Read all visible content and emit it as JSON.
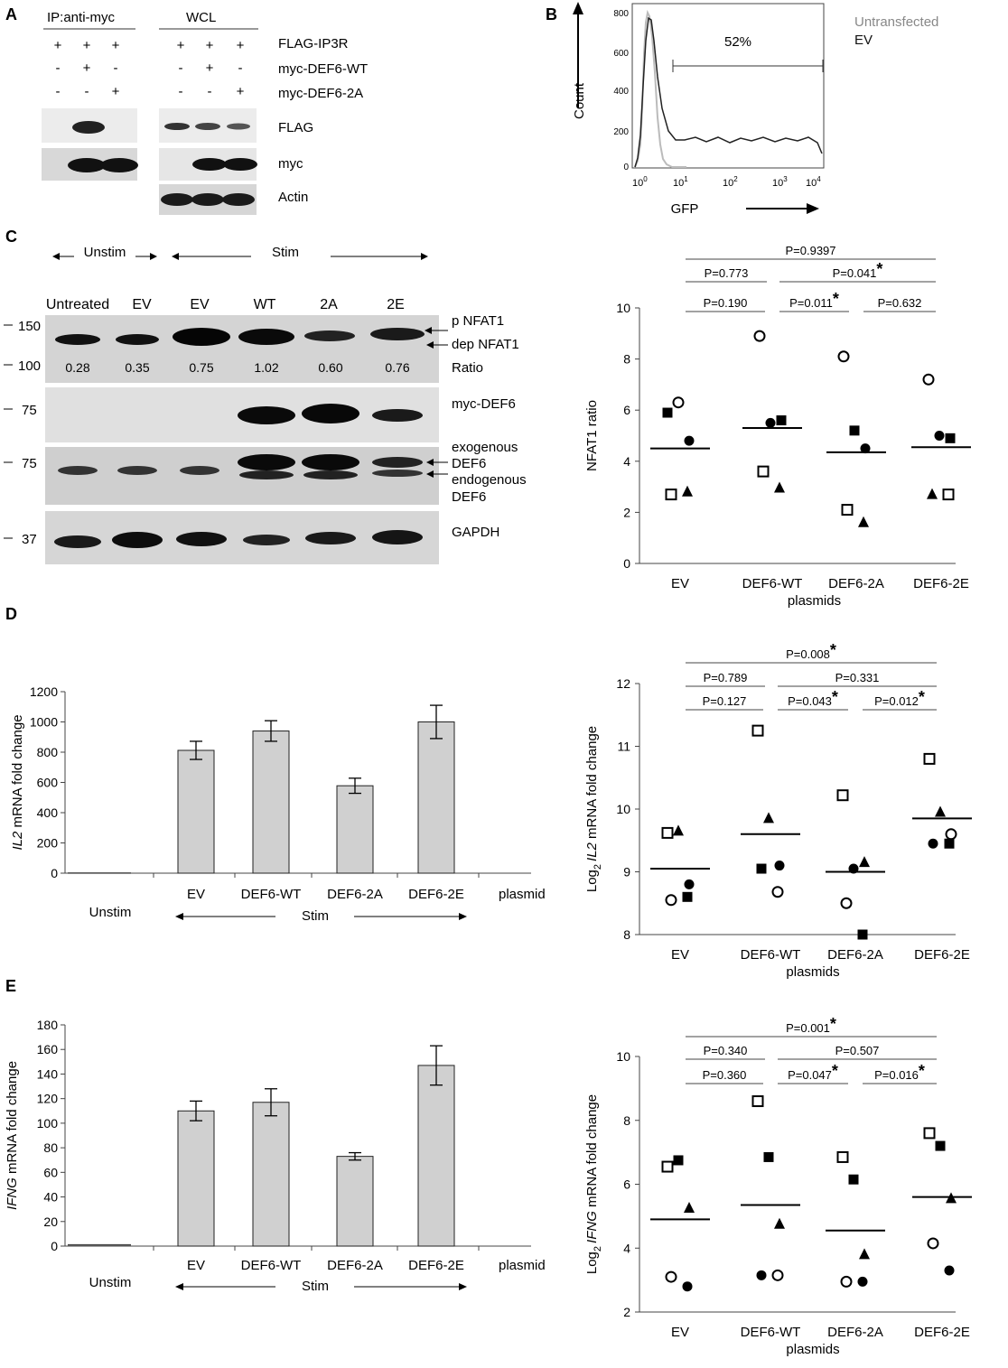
{
  "panel_letters": [
    "A",
    "B",
    "C",
    "D",
    "E"
  ],
  "panelA": {
    "group_ip": "IP:anti-myc",
    "group_wcl": "WCL",
    "row_labels": [
      "FLAG-IP3R",
      "myc-DEF6-WT",
      "myc-DEF6-2A"
    ],
    "signs_ip": [
      [
        "+",
        "+",
        "+"
      ],
      [
        "-",
        "+",
        "-"
      ],
      [
        "-",
        "-",
        "+"
      ]
    ],
    "signs_wcl": [
      [
        "+",
        "+",
        "+"
      ],
      [
        "-",
        "+",
        "-"
      ],
      [
        "-",
        "-",
        "+"
      ]
    ],
    "blot_labels": [
      "FLAG",
      "myc",
      "Actin"
    ]
  },
  "panelB": {
    "ylabel": "Count",
    "xlabel": "GFP",
    "legend": [
      "Untransfected",
      "EV"
    ],
    "gate_label": "52%",
    "yticks": [
      "0",
      "200",
      "400",
      "600",
      "800"
    ],
    "xticks": [
      {
        "base": "10",
        "exp": "0"
      },
      {
        "base": "10",
        "exp": "1"
      },
      {
        "base": "10",
        "exp": "2"
      },
      {
        "base": "10",
        "exp": "3"
      },
      {
        "base": "10",
        "exp": "4"
      }
    ]
  },
  "panelC_blot": {
    "unstim_label": "Unstim",
    "stim_label": "Stim",
    "lanes": [
      "Untreated",
      "EV",
      "EV",
      "WT",
      "2A",
      "2E"
    ],
    "ratios": [
      "0.28",
      "0.35",
      "0.75",
      "1.02",
      "0.60",
      "0.76"
    ],
    "mw_markers": [
      "150",
      "100",
      "75",
      "75",
      "37"
    ],
    "right_labels": {
      "p": "p NFAT1",
      "dep": "dep NFAT1",
      "ratio": "Ratio",
      "myc": "myc-DEF6",
      "exo1": "exogenous",
      "exo2": "DEF6",
      "endo1": "endogenous",
      "endo2": "DEF6",
      "gapdh": "GAPDH"
    }
  },
  "chart_data": [
    {
      "type": "scatter",
      "categories": [
        "EV",
        "DEF6-WT",
        "DEF6-2A",
        "DEF6-2E"
      ],
      "xlabel": "plasmids",
      "ylabel": "NFAT1 ratio",
      "ylim": [
        0,
        10
      ],
      "yticks": [
        0,
        2,
        4,
        6,
        8,
        10
      ],
      "means": [
        4.5,
        5.3,
        4.35,
        4.55
      ],
      "points": [
        [
          {
            "m": "fsq",
            "y": 5.9
          },
          {
            "m": "oc",
            "y": 6.3
          },
          {
            "m": "fc",
            "y": 4.8
          },
          {
            "m": "os",
            "y": 2.7
          },
          {
            "m": "tri",
            "y": 2.8
          }
        ],
        [
          {
            "m": "oc",
            "y": 8.9
          },
          {
            "m": "fc",
            "y": 5.5
          },
          {
            "m": "fsq",
            "y": 5.6
          },
          {
            "m": "os",
            "y": 3.6
          },
          {
            "m": "tri",
            "y": 2.95
          }
        ],
        [
          {
            "m": "oc",
            "y": 8.1
          },
          {
            "m": "fsq",
            "y": 5.2
          },
          {
            "m": "fc",
            "y": 4.5
          },
          {
            "m": "os",
            "y": 2.1
          },
          {
            "m": "tri",
            "y": 1.6
          }
        ],
        [
          {
            "m": "oc",
            "y": 7.2
          },
          {
            "m": "fc",
            "y": 5.0
          },
          {
            "m": "fsq",
            "y": 4.9
          },
          {
            "m": "tri",
            "y": 2.7
          },
          {
            "m": "os",
            "y": 2.7
          }
        ]
      ],
      "comparisons": [
        {
          "from": 0,
          "to": 3,
          "label": "P=0.9397",
          "star": ""
        },
        {
          "from": 0,
          "to": 1,
          "label": "P=0.773",
          "star": ""
        },
        {
          "from": 1,
          "to": 3,
          "label": "P=0.041",
          "star": "*"
        },
        {
          "from": 0,
          "to": 1,
          "label": "P=0.190",
          "star": ""
        },
        {
          "from": 1,
          "to": 2,
          "label": "P=0.011",
          "star": "*"
        },
        {
          "from": 2,
          "to": 3,
          "label": "P=0.632",
          "star": ""
        }
      ]
    },
    {
      "type": "bar",
      "categories": [
        "Unstim",
        "EV",
        "DEF6-WT",
        "DEF6-2A",
        "DEF6-2E"
      ],
      "values": [
        1,
        812,
        940,
        578,
        1000
      ],
      "errors": [
        0,
        60,
        68,
        50,
        110
      ],
      "ylabel_italic": "IL2",
      "ylabel_rest": " mRNA fold change",
      "ylim": [
        0,
        1200
      ],
      "yticks": [
        0,
        200,
        400,
        600,
        800,
        1000,
        1200
      ],
      "xaxis_tail": "plasmid",
      "stim_label": "Stim"
    },
    {
      "type": "scatter",
      "categories": [
        "EV",
        "DEF6-WT",
        "DEF6-2A",
        "DEF6-2E"
      ],
      "xlabel": "plasmids",
      "ylabel_pre": "Log",
      "ylabel_sub": "2",
      "ylabel_italic": "IL2",
      "ylabel_rest": " mRNA fold change",
      "ylim": [
        8,
        12
      ],
      "yticks": [
        8,
        9,
        10,
        11,
        12
      ],
      "means": [
        9.05,
        9.6,
        9.0,
        9.85
      ],
      "points": [
        [
          {
            "m": "os",
            "y": 9.62
          },
          {
            "m": "tri",
            "y": 9.65
          },
          {
            "m": "fc",
            "y": 8.8
          },
          {
            "m": "oc",
            "y": 8.55
          },
          {
            "m": "fsq",
            "y": 8.6
          }
        ],
        [
          {
            "m": "os",
            "y": 11.25
          },
          {
            "m": "tri",
            "y": 9.85
          },
          {
            "m": "fc",
            "y": 9.1
          },
          {
            "m": "fsq",
            "y": 9.05
          },
          {
            "m": "oc",
            "y": 8.68
          }
        ],
        [
          {
            "m": "os",
            "y": 10.22
          },
          {
            "m": "fc",
            "y": 9.05
          },
          {
            "m": "tri",
            "y": 9.15
          },
          {
            "m": "oc",
            "y": 8.5
          },
          {
            "m": "fsq",
            "y": 8.0
          }
        ],
        [
          {
            "m": "os",
            "y": 10.8
          },
          {
            "m": "tri",
            "y": 9.95
          },
          {
            "m": "oc",
            "y": 9.6
          },
          {
            "m": "fc",
            "y": 9.45
          },
          {
            "m": "fsq",
            "y": 9.45
          }
        ]
      ],
      "comparisons": [
        {
          "from": 0,
          "to": 3,
          "label": "P=0.008",
          "star": "*"
        },
        {
          "from": 0,
          "to": 1,
          "label": "P=0.789",
          "star": ""
        },
        {
          "from": 1,
          "to": 3,
          "label": "P=0.331",
          "star": ""
        },
        {
          "from": 0,
          "to": 1,
          "label": "P=0.127",
          "star": ""
        },
        {
          "from": 1,
          "to": 2,
          "label": "P=0.043",
          "star": "*"
        },
        {
          "from": 2,
          "to": 3,
          "label": "P=0.012",
          "star": "*"
        }
      ]
    },
    {
      "type": "bar",
      "categories": [
        "Unstim",
        "EV",
        "DEF6-WT",
        "DEF6-2A",
        "DEF6-2E"
      ],
      "values": [
        1,
        110,
        117,
        73,
        147
      ],
      "errors": [
        0,
        8,
        11,
        3,
        16
      ],
      "ylabel_italic": "IFNG",
      "ylabel_rest": "  mRNA fold change",
      "ylim": [
        0,
        180
      ],
      "yticks": [
        0,
        20,
        40,
        60,
        80,
        100,
        120,
        140,
        160,
        180
      ],
      "xaxis_tail": "plasmid",
      "stim_label": "Stim"
    },
    {
      "type": "scatter",
      "categories": [
        "EV",
        "DEF6-WT",
        "DEF6-2A",
        "DEF6-2E"
      ],
      "xlabel": "plasmids",
      "ylabel_pre": "Log",
      "ylabel_sub": "2",
      "ylabel_italic": "IFNG",
      "ylabel_rest": " mRNA fold change",
      "ylim": [
        2,
        10
      ],
      "yticks": [
        2,
        4,
        6,
        8,
        10
      ],
      "means": [
        4.9,
        5.35,
        4.55,
        5.6
      ],
      "points": [
        [
          {
            "m": "os",
            "y": 6.55
          },
          {
            "m": "fsq",
            "y": 6.75
          },
          {
            "m": "tri",
            "y": 5.25
          },
          {
            "m": "oc",
            "y": 3.1
          },
          {
            "m": "fc",
            "y": 2.8
          }
        ],
        [
          {
            "m": "os",
            "y": 8.6
          },
          {
            "m": "fsq",
            "y": 6.85
          },
          {
            "m": "tri",
            "y": 4.75
          },
          {
            "m": "fc",
            "y": 3.15
          },
          {
            "m": "oc",
            "y": 3.15
          }
        ],
        [
          {
            "m": "os",
            "y": 6.85
          },
          {
            "m": "fsq",
            "y": 6.15
          },
          {
            "m": "tri",
            "y": 3.8
          },
          {
            "m": "oc",
            "y": 2.95
          },
          {
            "m": "fc",
            "y": 2.95
          }
        ],
        [
          {
            "m": "os",
            "y": 7.6
          },
          {
            "m": "fsq",
            "y": 7.2
          },
          {
            "m": "tri",
            "y": 5.55
          },
          {
            "m": "oc",
            "y": 4.15
          },
          {
            "m": "fc",
            "y": 3.3
          }
        ]
      ],
      "comparisons": [
        {
          "from": 0,
          "to": 3,
          "label": "P=0.001",
          "star": "*"
        },
        {
          "from": 0,
          "to": 1,
          "label": "P=0.340",
          "star": ""
        },
        {
          "from": 1,
          "to": 3,
          "label": "P=0.507",
          "star": ""
        },
        {
          "from": 0,
          "to": 1,
          "label": "P=0.360",
          "star": ""
        },
        {
          "from": 1,
          "to": 2,
          "label": "P=0.047",
          "star": "*"
        },
        {
          "from": 2,
          "to": 3,
          "label": "P=0.016",
          "star": "*"
        }
      ]
    }
  ]
}
